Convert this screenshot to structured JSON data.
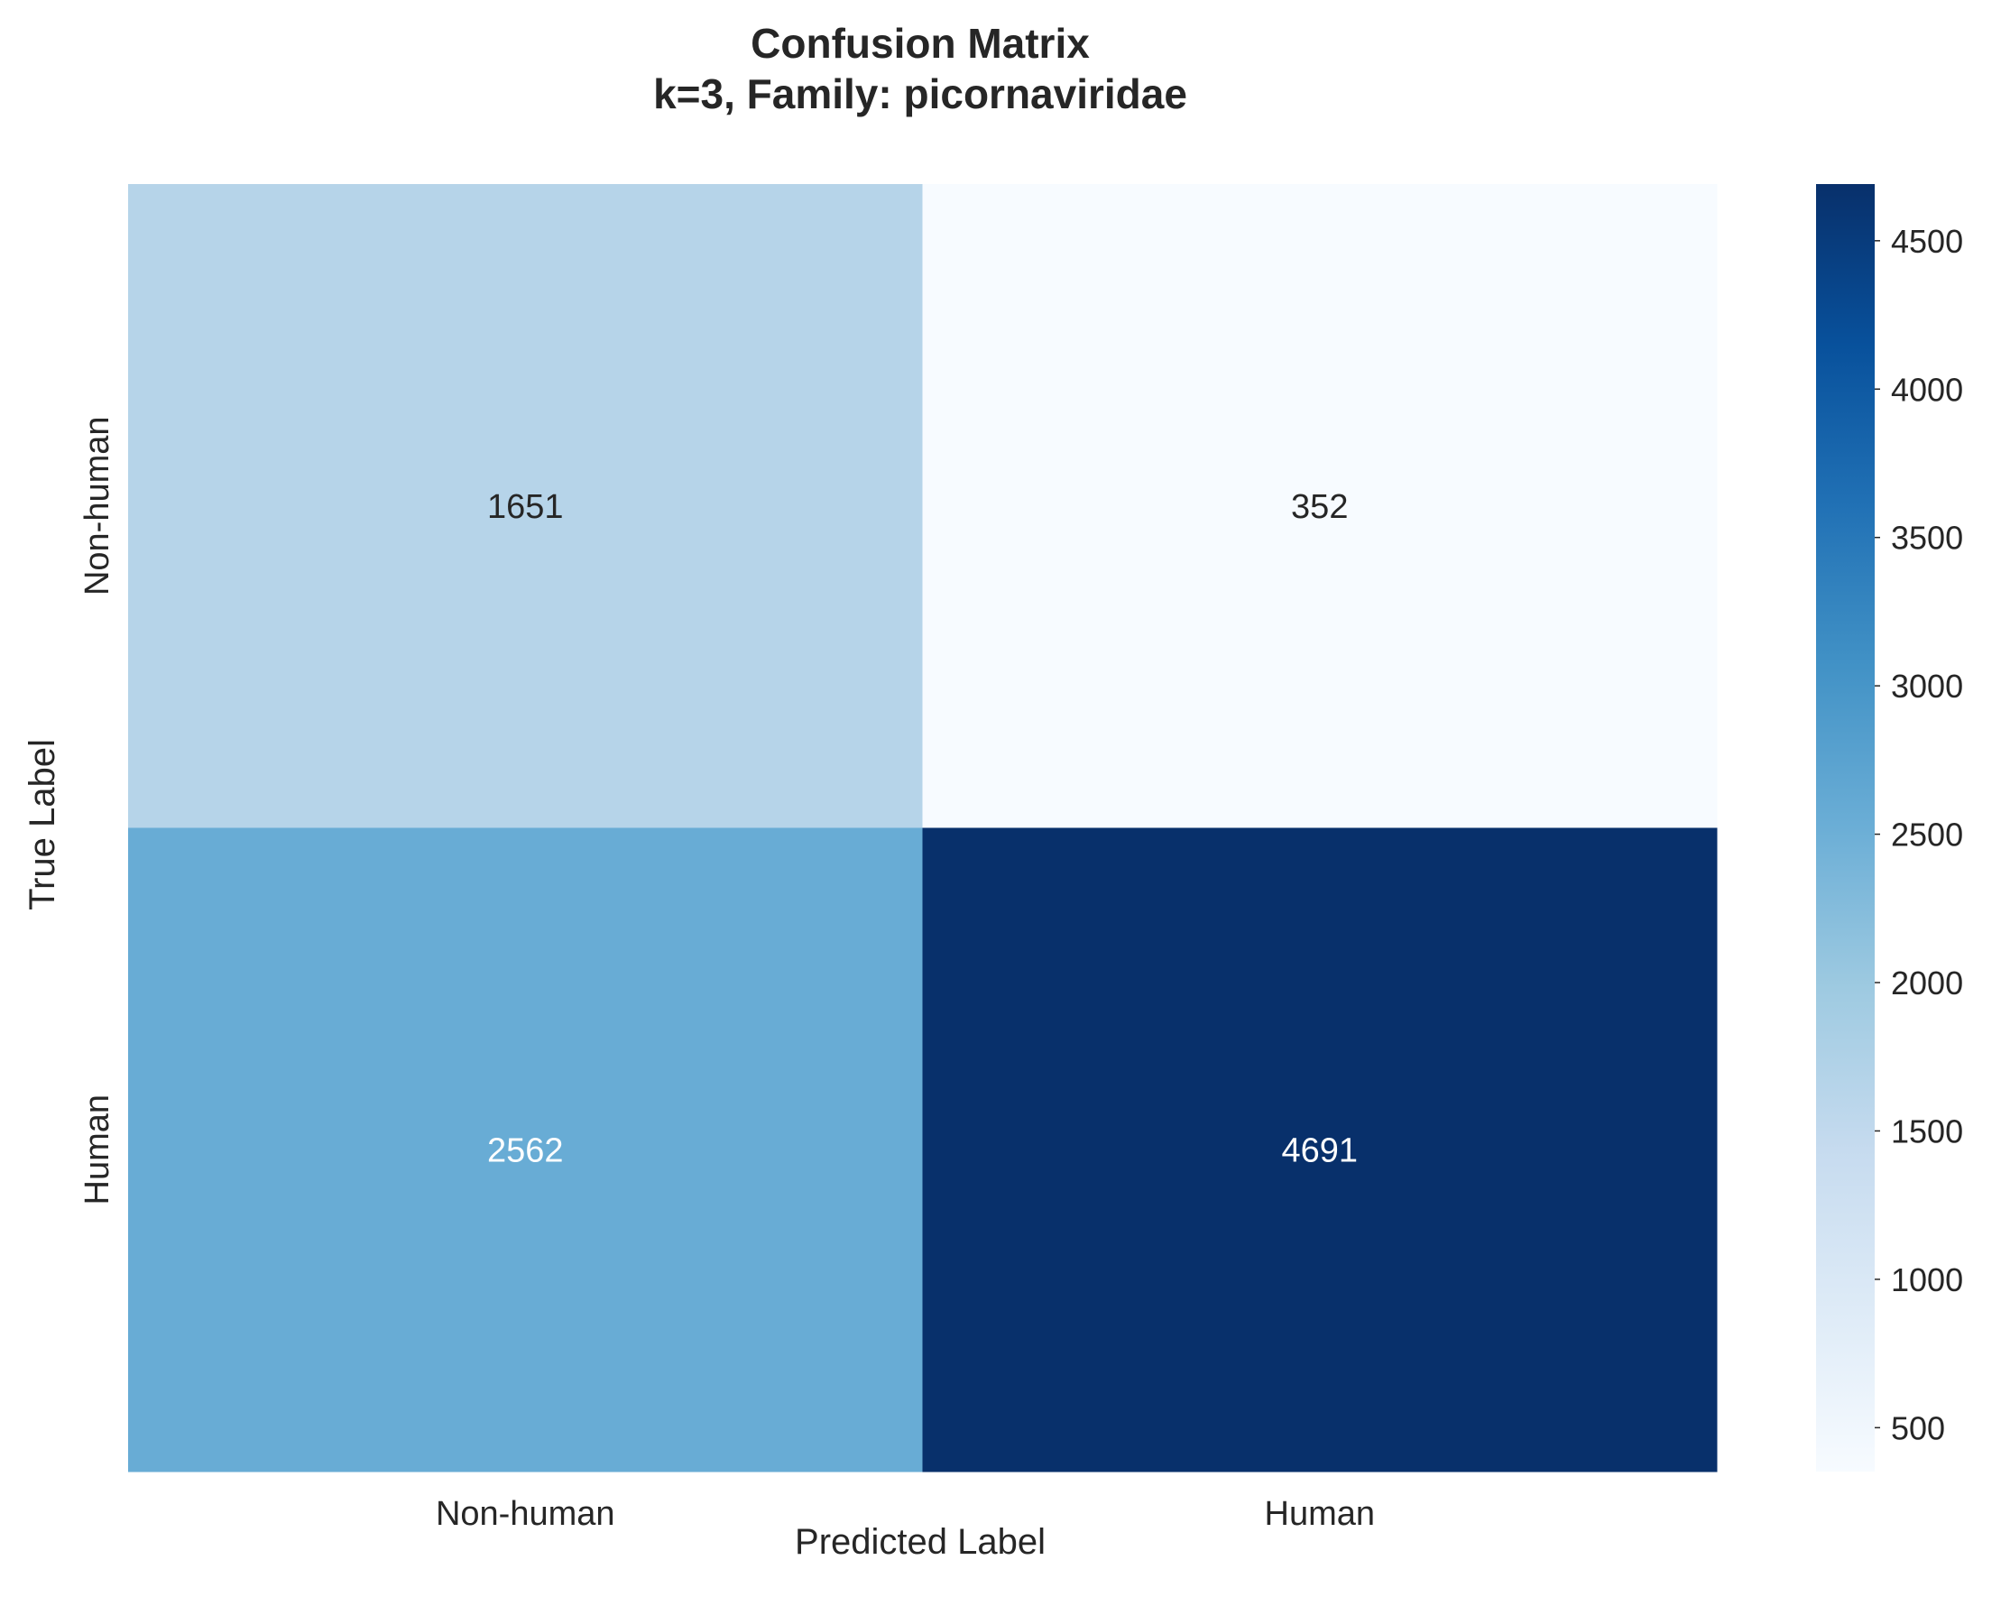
{
  "chart_data": {
    "type": "heatmap",
    "title_lines": [
      "Confusion Matrix",
      "k=3, Family: picornaviridae"
    ],
    "xlabel": "Predicted Label",
    "ylabel": "True Label",
    "x_categories": [
      "Non-human",
      "Human"
    ],
    "y_categories": [
      "Non-human",
      "Human"
    ],
    "matrix": [
      [
        1651,
        352
      ],
      [
        2562,
        4691
      ]
    ],
    "colormap": "Blues",
    "colorbar": {
      "range": [
        352,
        4691
      ],
      "ticks": [
        500,
        1000,
        1500,
        2000,
        2500,
        3000,
        3500,
        4000,
        4500
      ]
    },
    "colors": {
      "text_dark": "#262626",
      "text_light": "#ffffff"
    }
  }
}
